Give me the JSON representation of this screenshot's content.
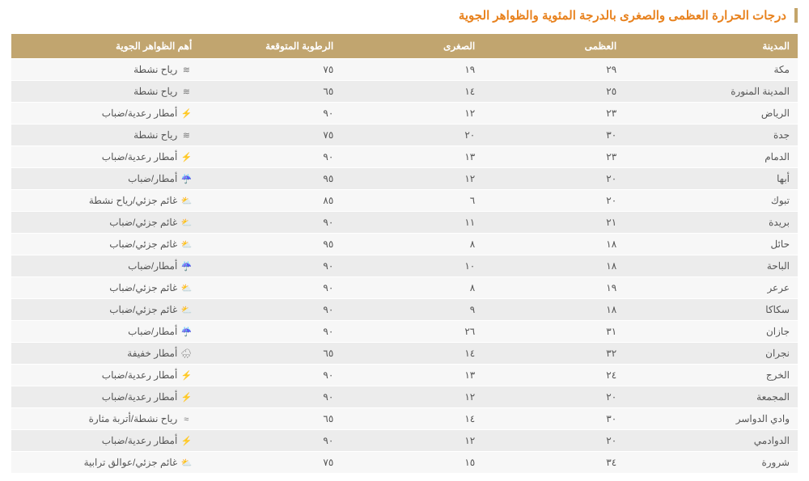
{
  "title": "درجات الحرارة العظمى والصغرى بالدرجة المئوية والظواهر الجوية",
  "colors": {
    "header_bg": "#c1a56f",
    "header_text": "#ffffff",
    "title_text": "#e8821e",
    "title_border": "#c4a56a",
    "row_odd_bg": "#f7f7f7",
    "row_even_bg": "#ececec",
    "cell_text": "#555555",
    "page_bg": "#ffffff"
  },
  "typography": {
    "title_fontsize": 15,
    "header_fontsize": 12,
    "cell_fontsize": 12,
    "font_family": "Tahoma"
  },
  "columns": [
    {
      "key": "city",
      "label": "المدينة",
      "width": "22%"
    },
    {
      "key": "high",
      "label": "العظمى",
      "width": "18%"
    },
    {
      "key": "low",
      "label": "الصغرى",
      "width": "18%"
    },
    {
      "key": "humidity",
      "label": "الرطوبة المتوقعة",
      "width": "18%"
    },
    {
      "key": "weather",
      "label": "أهم الظواهر الجوية",
      "width": "24%"
    }
  ],
  "icons": {
    "wind": {
      "name": "wind-icon",
      "glyph": "≋"
    },
    "thunder": {
      "name": "thunder-icon",
      "glyph": "⚡"
    },
    "rain": {
      "name": "rain-icon",
      "glyph": "☔"
    },
    "partcloud": {
      "name": "partcloud-icon",
      "glyph": "⛅"
    },
    "lightrain": {
      "name": "lightrain-icon",
      "glyph": "🌧"
    },
    "dust": {
      "name": "dust-icon",
      "glyph": "≈"
    }
  },
  "rows": [
    {
      "city": "مكة",
      "high": "٢٩",
      "low": "١٩",
      "humidity": "٧٥",
      "icon": "wind",
      "weather": "رياح نشطة"
    },
    {
      "city": "المدينة المنورة",
      "high": "٢٥",
      "low": "١٤",
      "humidity": "٦٥",
      "icon": "wind",
      "weather": "رياح نشطة"
    },
    {
      "city": "الرياض",
      "high": "٢٣",
      "low": "١٢",
      "humidity": "٩٠",
      "icon": "thunder",
      "weather": "أمطار رعدية/ضباب"
    },
    {
      "city": "جدة",
      "high": "٣٠",
      "low": "٢٠",
      "humidity": "٧٥",
      "icon": "wind",
      "weather": "رياح نشطة"
    },
    {
      "city": "الدمام",
      "high": "٢٣",
      "low": "١٣",
      "humidity": "٩٠",
      "icon": "thunder",
      "weather": "أمطار رعدية/ضباب"
    },
    {
      "city": "أبها",
      "high": "٢٠",
      "low": "١٢",
      "humidity": "٩٥",
      "icon": "rain",
      "weather": "أمطار/ضباب"
    },
    {
      "city": "تبوك",
      "high": "٢٠",
      "low": "٦",
      "humidity": "٨٥",
      "icon": "partcloud",
      "weather": "غائم جزئي/رياح نشطة"
    },
    {
      "city": "بريدة",
      "high": "٢١",
      "low": "١١",
      "humidity": "٩٠",
      "icon": "partcloud",
      "weather": "غائم جزئي/ضباب"
    },
    {
      "city": "حائل",
      "high": "١٨",
      "low": "٨",
      "humidity": "٩٥",
      "icon": "partcloud",
      "weather": "غائم جزئي/ضباب"
    },
    {
      "city": "الباحة",
      "high": "١٨",
      "low": "١٠",
      "humidity": "٩٠",
      "icon": "rain",
      "weather": "أمطار/ضباب"
    },
    {
      "city": "عرعر",
      "high": "١٩",
      "low": "٨",
      "humidity": "٩٠",
      "icon": "partcloud",
      "weather": "غائم جزئي/ضباب"
    },
    {
      "city": "سكاكا",
      "high": "١٨",
      "low": "٩",
      "humidity": "٩٠",
      "icon": "partcloud",
      "weather": "غائم جزئي/ضباب"
    },
    {
      "city": "جازان",
      "high": "٣١",
      "low": "٢٦",
      "humidity": "٩٠",
      "icon": "rain",
      "weather": "أمطار/ضباب"
    },
    {
      "city": "نجران",
      "high": "٣٢",
      "low": "١٤",
      "humidity": "٦٥",
      "icon": "lightrain",
      "weather": "أمطار خفيفة"
    },
    {
      "city": "الخرج",
      "high": "٢٤",
      "low": "١٣",
      "humidity": "٩٠",
      "icon": "thunder",
      "weather": "أمطار رعدية/ضباب"
    },
    {
      "city": "المجمعة",
      "high": "٢٠",
      "low": "١٢",
      "humidity": "٩٠",
      "icon": "thunder",
      "weather": "أمطار رعدية/ضباب"
    },
    {
      "city": "وادي الدواسر",
      "high": "٣٠",
      "low": "١٤",
      "humidity": "٦٥",
      "icon": "dust",
      "weather": "رياح نشطة/أتربة مثارة"
    },
    {
      "city": "الدوادمي",
      "high": "٢٠",
      "low": "١٢",
      "humidity": "٩٠",
      "icon": "thunder",
      "weather": "أمطار رعدية/ضباب"
    },
    {
      "city": "شرورة",
      "high": "٣٤",
      "low": "١٥",
      "humidity": "٧٥",
      "icon": "partcloud",
      "weather": "غائم جزئي/عوالق ترابية"
    }
  ]
}
